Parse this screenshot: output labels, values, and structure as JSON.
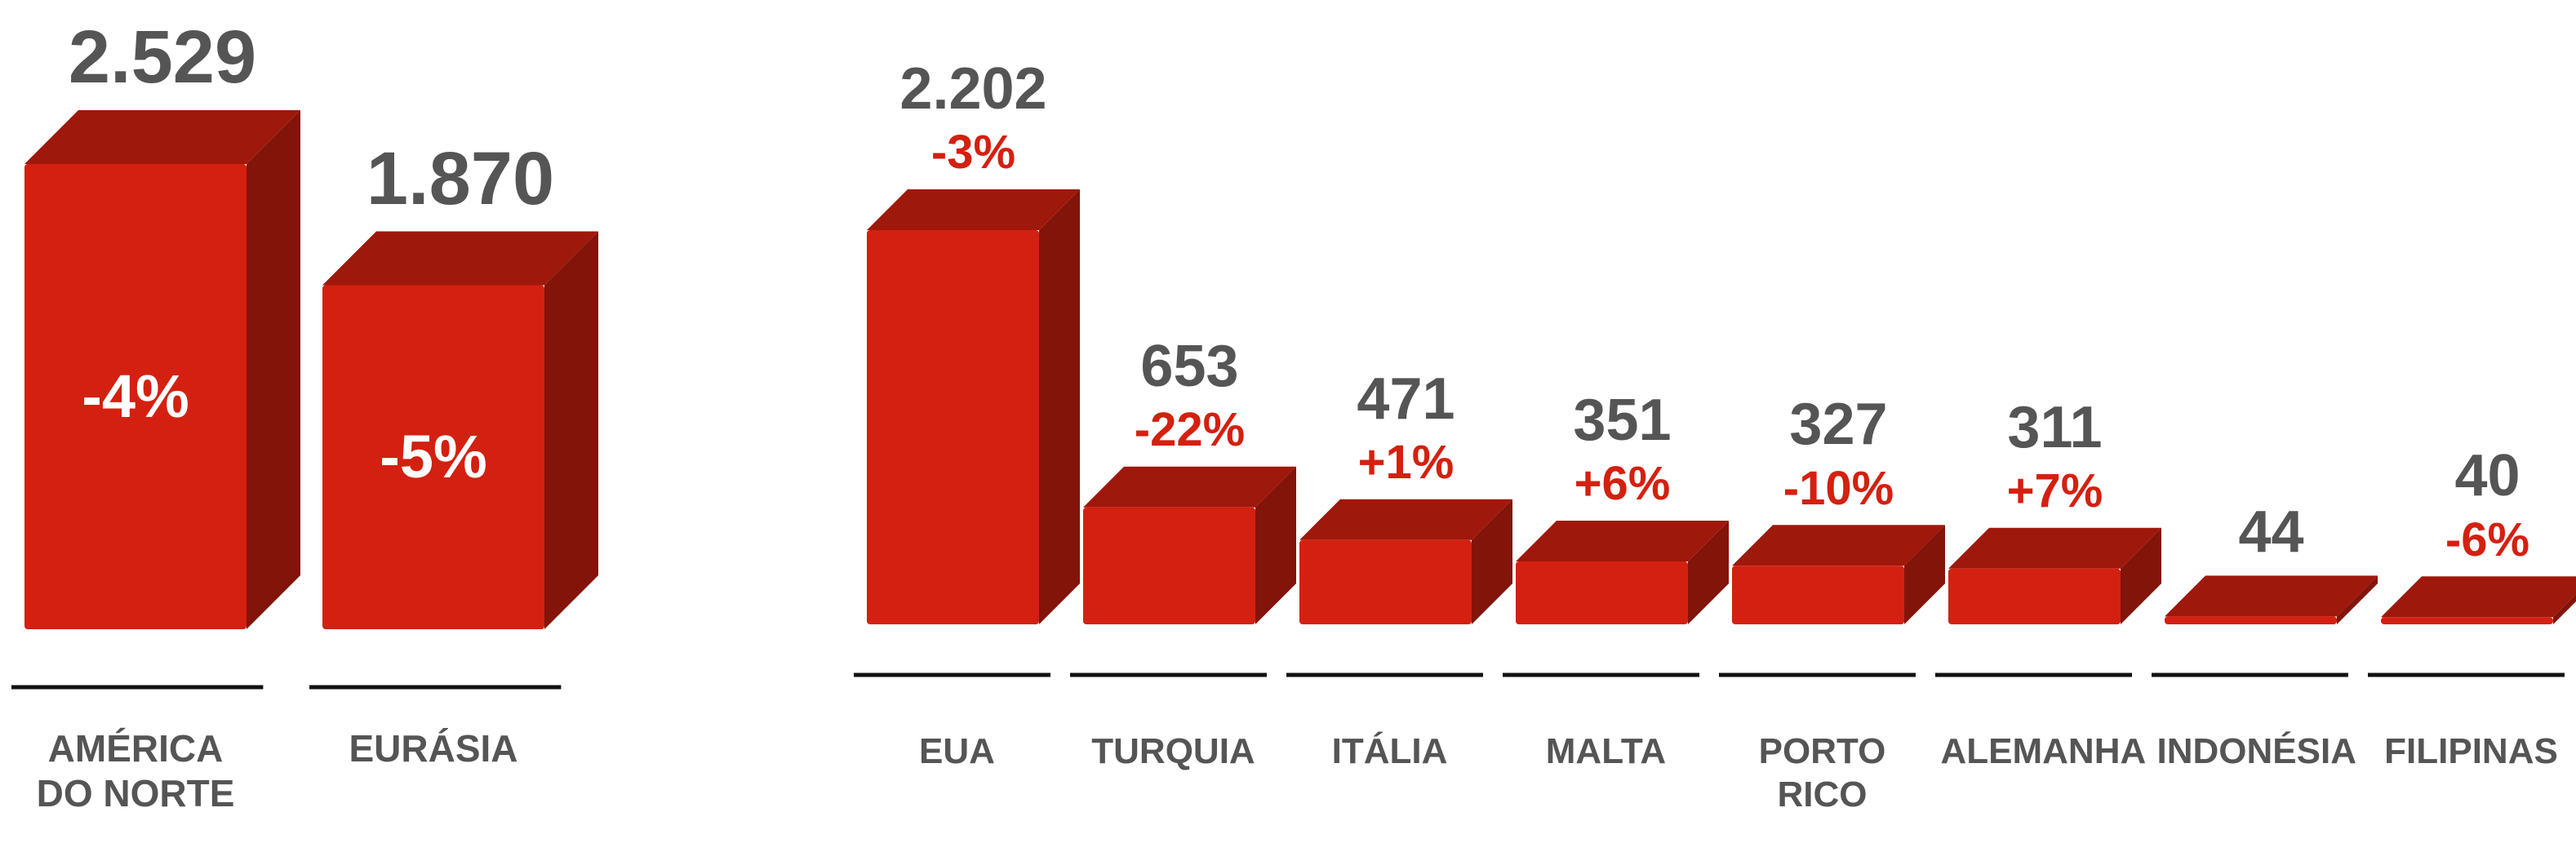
{
  "chart_data": [
    {
      "type": "bar",
      "categories": [
        "AMÉRICA DO NORTE",
        "EURÁSIA"
      ],
      "values": [
        2529,
        1870
      ],
      "value_labels": [
        "2.529",
        "1.870"
      ],
      "change_labels": [
        "-4%",
        "-5%"
      ],
      "color": "#d42010"
    },
    {
      "type": "bar",
      "categories": [
        "EUA",
        "TURQUIA",
        "ITÁLIA",
        "MALTA",
        "PORTO RICO",
        "ALEMANHA",
        "INDONÉSIA",
        "FILIPINAS"
      ],
      "values": [
        2202,
        653,
        471,
        351,
        327,
        311,
        44,
        40
      ],
      "value_labels": [
        "2.202",
        "653",
        "471",
        "351",
        "327",
        "311",
        "44",
        "40"
      ],
      "change_labels": [
        "-3%",
        "-22%",
        "+1%",
        "+6%",
        "-10%",
        "+7%",
        null,
        "-6%"
      ],
      "color": "#d42010"
    }
  ]
}
